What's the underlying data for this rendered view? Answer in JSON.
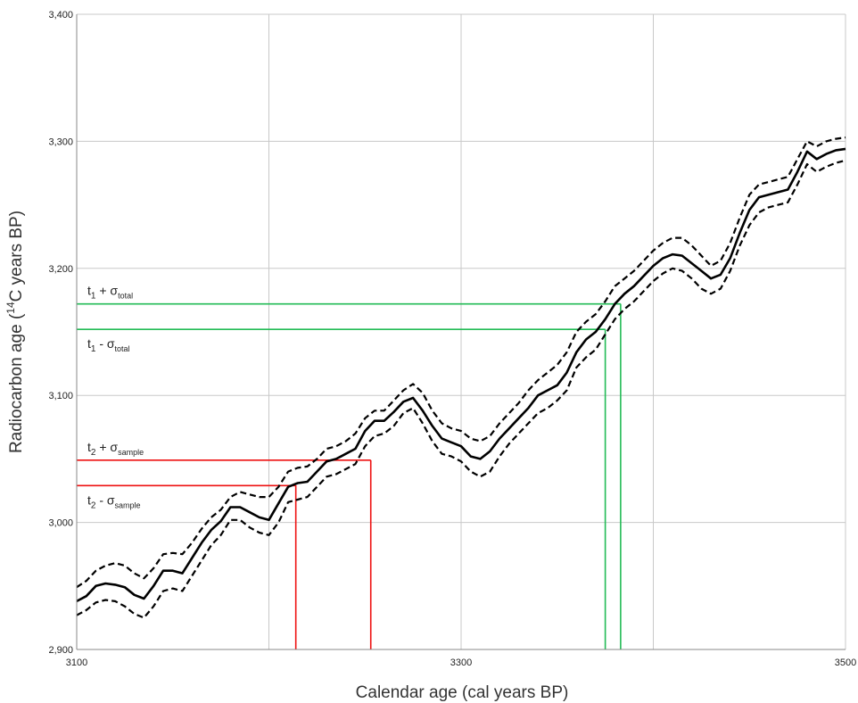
{
  "chart_data": {
    "type": "line",
    "xlabel": "Calendar age (cal years BP)",
    "ylabel_parts": {
      "pre": "Radiocarbon age (",
      "sup": "14",
      "post": "C years BP)"
    },
    "xlim": [
      3100,
      3500
    ],
    "ylim": [
      2900,
      3400
    ],
    "x_ticks": [
      3100,
      3300,
      3500
    ],
    "x_tick_labels": [
      "3100",
      "3300",
      "3500"
    ],
    "x_grid": [
      3100,
      3200,
      3300,
      3400,
      3500
    ],
    "y_ticks": [
      2900,
      3000,
      3100,
      3200,
      3300,
      3400
    ],
    "y_tick_labels": [
      "2,900",
      "3,000",
      "3,100",
      "3,200",
      "3,300",
      "3,400"
    ],
    "grid": true,
    "colors": {
      "mean": "#000000",
      "band": "#000000",
      "green": "#22bb55",
      "red": "#ee1111",
      "grid": "#c8c8c8"
    },
    "series": [
      {
        "role": "mean",
        "x": [
          3100,
          3105,
          3110,
          3115,
          3120,
          3125,
          3130,
          3135,
          3140,
          3145,
          3150,
          3155,
          3160,
          3165,
          3170,
          3175,
          3180,
          3185,
          3190,
          3195,
          3200,
          3205,
          3210,
          3215,
          3220,
          3225,
          3230,
          3235,
          3240,
          3245,
          3250,
          3255,
          3260,
          3265,
          3270,
          3275,
          3280,
          3285,
          3290,
          3295,
          3300,
          3305,
          3310,
          3315,
          3320,
          3325,
          3330,
          3335,
          3340,
          3345,
          3350,
          3355,
          3360,
          3365,
          3370,
          3375,
          3380,
          3385,
          3390,
          3395,
          3400,
          3405,
          3410,
          3415,
          3420,
          3425,
          3430,
          3435,
          3440,
          3445,
          3450,
          3455,
          3460,
          3465,
          3470,
          3475,
          3480,
          3485,
          3490,
          3495,
          3500
        ],
        "y": [
          2938,
          2942,
          2950,
          2952,
          2951,
          2949,
          2943,
          2940,
          2950,
          2962,
          2962,
          2960,
          2972,
          2984,
          2994,
          3001,
          3012,
          3012,
          3008,
          3004,
          3002,
          3015,
          3028,
          3031,
          3032,
          3040,
          3048,
          3050,
          3054,
          3058,
          3072,
          3080,
          3080,
          3087,
          3095,
          3098,
          3088,
          3076,
          3066,
          3063,
          3060,
          3052,
          3050,
          3056,
          3066,
          3074,
          3082,
          3090,
          3100,
          3104,
          3108,
          3118,
          3134,
          3144,
          3150,
          3160,
          3172,
          3180,
          3186,
          3194,
          3202,
          3208,
          3211,
          3210,
          3204,
          3198,
          3192,
          3195,
          3208,
          3228,
          3246,
          3256,
          3258,
          3260,
          3262,
          3276,
          3292,
          3286,
          3290,
          3293,
          3294
        ]
      },
      {
        "role": "upper-bound",
        "x": [
          3100,
          3105,
          3110,
          3115,
          3120,
          3125,
          3130,
          3135,
          3140,
          3145,
          3150,
          3155,
          3160,
          3165,
          3170,
          3175,
          3180,
          3185,
          3190,
          3195,
          3200,
          3205,
          3210,
          3215,
          3220,
          3225,
          3230,
          3235,
          3240,
          3245,
          3250,
          3255,
          3260,
          3265,
          3270,
          3275,
          3280,
          3285,
          3290,
          3295,
          3300,
          3305,
          3310,
          3315,
          3320,
          3325,
          3330,
          3335,
          3340,
          3345,
          3350,
          3355,
          3360,
          3365,
          3370,
          3375,
          3380,
          3385,
          3390,
          3395,
          3400,
          3405,
          3410,
          3415,
          3420,
          3425,
          3430,
          3435,
          3440,
          3445,
          3450,
          3455,
          3460,
          3465,
          3470,
          3475,
          3480,
          3485,
          3490,
          3495,
          3500
        ],
        "y": [
          2949,
          2954,
          2962,
          2966,
          2968,
          2966,
          2960,
          2956,
          2964,
          2975,
          2976,
          2975,
          2984,
          2995,
          3004,
          3010,
          3020,
          3024,
          3022,
          3020,
          3020,
          3028,
          3040,
          3043,
          3044,
          3050,
          3058,
          3060,
          3064,
          3070,
          3082,
          3088,
          3088,
          3096,
          3104,
          3109,
          3102,
          3088,
          3078,
          3074,
          3072,
          3066,
          3064,
          3068,
          3078,
          3086,
          3094,
          3104,
          3112,
          3118,
          3124,
          3134,
          3150,
          3158,
          3164,
          3174,
          3186,
          3192,
          3198,
          3206,
          3214,
          3220,
          3224,
          3224,
          3218,
          3210,
          3202,
          3206,
          3220,
          3240,
          3258,
          3266,
          3268,
          3270,
          3272,
          3286,
          3300,
          3296,
          3300,
          3302,
          3303
        ]
      },
      {
        "role": "lower-bound",
        "x": [
          3100,
          3105,
          3110,
          3115,
          3120,
          3125,
          3130,
          3135,
          3140,
          3145,
          3150,
          3155,
          3160,
          3165,
          3170,
          3175,
          3180,
          3185,
          3190,
          3195,
          3200,
          3205,
          3210,
          3215,
          3220,
          3225,
          3230,
          3235,
          3240,
          3245,
          3250,
          3255,
          3260,
          3265,
          3270,
          3275,
          3280,
          3285,
          3290,
          3295,
          3300,
          3305,
          3310,
          3315,
          3320,
          3325,
          3330,
          3335,
          3340,
          3345,
          3350,
          3355,
          3360,
          3365,
          3370,
          3375,
          3380,
          3385,
          3390,
          3395,
          3400,
          3405,
          3410,
          3415,
          3420,
          3425,
          3430,
          3435,
          3440,
          3445,
          3450,
          3455,
          3460,
          3465,
          3470,
          3475,
          3480,
          3485,
          3490,
          3495,
          3500
        ],
        "y": [
          2927,
          2931,
          2937,
          2939,
          2938,
          2934,
          2928,
          2925,
          2934,
          2946,
          2948,
          2946,
          2958,
          2970,
          2982,
          2990,
          3002,
          3002,
          2996,
          2992,
          2990,
          3000,
          3016,
          3018,
          3020,
          3028,
          3036,
          3038,
          3042,
          3046,
          3060,
          3068,
          3070,
          3076,
          3086,
          3090,
          3078,
          3064,
          3054,
          3052,
          3048,
          3040,
          3036,
          3040,
          3052,
          3062,
          3070,
          3078,
          3086,
          3090,
          3096,
          3104,
          3122,
          3130,
          3136,
          3148,
          3160,
          3168,
          3174,
          3182,
          3190,
          3196,
          3200,
          3198,
          3192,
          3184,
          3180,
          3184,
          3198,
          3218,
          3234,
          3244,
          3248,
          3250,
          3252,
          3266,
          3282,
          3276,
          3280,
          3283,
          3285
        ]
      }
    ],
    "reference_lines": [
      {
        "label_main": "t",
        "label_sub": "1",
        "label_op": " + σ",
        "label_sigma_sub": "total",
        "y": 3172,
        "x_end": 3383,
        "color": "green"
      },
      {
        "label_main": "t",
        "label_sub": "1",
        "label_op": " - σ",
        "label_sigma_sub": "total",
        "y": 3152,
        "x_end": 3375,
        "color": "green"
      },
      {
        "label_main": "t",
        "label_sub": "2",
        "label_op": " + σ",
        "label_sigma_sub": "sample",
        "y": 3049,
        "x_end": 3253,
        "color": "red"
      },
      {
        "label_main": "t",
        "label_sub": "2",
        "label_op": " - σ",
        "label_sigma_sub": "sample",
        "y": 3029,
        "x_end": 3214,
        "color": "red"
      }
    ]
  }
}
